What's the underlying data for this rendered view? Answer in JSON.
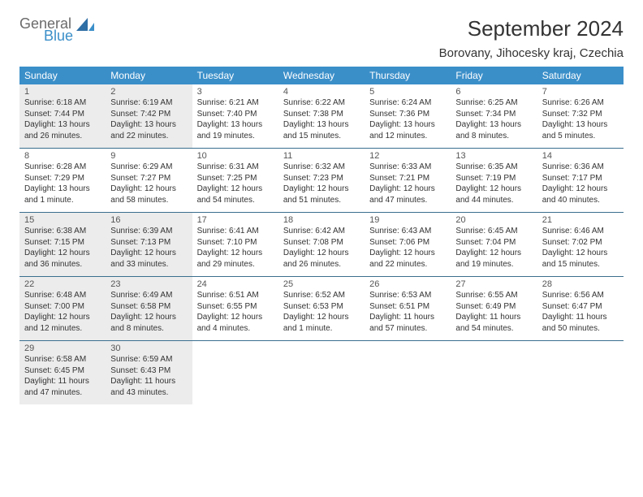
{
  "logo": {
    "line1": "General",
    "line2": "Blue"
  },
  "title": "September 2024",
  "location": "Borovany, Jihocesky kraj, Czechia",
  "colors": {
    "header_bg": "#3b8fc9",
    "header_text": "#ffffff",
    "shaded_bg": "#ececec",
    "border": "#3b6f8f",
    "text": "#333333",
    "logo_gray": "#6b6b6b",
    "logo_blue": "#3b8fc9"
  },
  "weekdays": [
    "Sunday",
    "Monday",
    "Tuesday",
    "Wednesday",
    "Thursday",
    "Friday",
    "Saturday"
  ],
  "weeks": [
    [
      {
        "day": "1",
        "shaded": true,
        "sunrise": "Sunrise: 6:18 AM",
        "sunset": "Sunset: 7:44 PM",
        "daylight1": "Daylight: 13 hours",
        "daylight2": "and 26 minutes."
      },
      {
        "day": "2",
        "shaded": true,
        "sunrise": "Sunrise: 6:19 AM",
        "sunset": "Sunset: 7:42 PM",
        "daylight1": "Daylight: 13 hours",
        "daylight2": "and 22 minutes."
      },
      {
        "day": "3",
        "shaded": false,
        "sunrise": "Sunrise: 6:21 AM",
        "sunset": "Sunset: 7:40 PM",
        "daylight1": "Daylight: 13 hours",
        "daylight2": "and 19 minutes."
      },
      {
        "day": "4",
        "shaded": false,
        "sunrise": "Sunrise: 6:22 AM",
        "sunset": "Sunset: 7:38 PM",
        "daylight1": "Daylight: 13 hours",
        "daylight2": "and 15 minutes."
      },
      {
        "day": "5",
        "shaded": false,
        "sunrise": "Sunrise: 6:24 AM",
        "sunset": "Sunset: 7:36 PM",
        "daylight1": "Daylight: 13 hours",
        "daylight2": "and 12 minutes."
      },
      {
        "day": "6",
        "shaded": false,
        "sunrise": "Sunrise: 6:25 AM",
        "sunset": "Sunset: 7:34 PM",
        "daylight1": "Daylight: 13 hours",
        "daylight2": "and 8 minutes."
      },
      {
        "day": "7",
        "shaded": false,
        "sunrise": "Sunrise: 6:26 AM",
        "sunset": "Sunset: 7:32 PM",
        "daylight1": "Daylight: 13 hours",
        "daylight2": "and 5 minutes."
      }
    ],
    [
      {
        "day": "8",
        "shaded": false,
        "sunrise": "Sunrise: 6:28 AM",
        "sunset": "Sunset: 7:29 PM",
        "daylight1": "Daylight: 13 hours",
        "daylight2": "and 1 minute."
      },
      {
        "day": "9",
        "shaded": false,
        "sunrise": "Sunrise: 6:29 AM",
        "sunset": "Sunset: 7:27 PM",
        "daylight1": "Daylight: 12 hours",
        "daylight2": "and 58 minutes."
      },
      {
        "day": "10",
        "shaded": false,
        "sunrise": "Sunrise: 6:31 AM",
        "sunset": "Sunset: 7:25 PM",
        "daylight1": "Daylight: 12 hours",
        "daylight2": "and 54 minutes."
      },
      {
        "day": "11",
        "shaded": false,
        "sunrise": "Sunrise: 6:32 AM",
        "sunset": "Sunset: 7:23 PM",
        "daylight1": "Daylight: 12 hours",
        "daylight2": "and 51 minutes."
      },
      {
        "day": "12",
        "shaded": false,
        "sunrise": "Sunrise: 6:33 AM",
        "sunset": "Sunset: 7:21 PM",
        "daylight1": "Daylight: 12 hours",
        "daylight2": "and 47 minutes."
      },
      {
        "day": "13",
        "shaded": false,
        "sunrise": "Sunrise: 6:35 AM",
        "sunset": "Sunset: 7:19 PM",
        "daylight1": "Daylight: 12 hours",
        "daylight2": "and 44 minutes."
      },
      {
        "day": "14",
        "shaded": false,
        "sunrise": "Sunrise: 6:36 AM",
        "sunset": "Sunset: 7:17 PM",
        "daylight1": "Daylight: 12 hours",
        "daylight2": "and 40 minutes."
      }
    ],
    [
      {
        "day": "15",
        "shaded": true,
        "sunrise": "Sunrise: 6:38 AM",
        "sunset": "Sunset: 7:15 PM",
        "daylight1": "Daylight: 12 hours",
        "daylight2": "and 36 minutes."
      },
      {
        "day": "16",
        "shaded": true,
        "sunrise": "Sunrise: 6:39 AM",
        "sunset": "Sunset: 7:13 PM",
        "daylight1": "Daylight: 12 hours",
        "daylight2": "and 33 minutes."
      },
      {
        "day": "17",
        "shaded": false,
        "sunrise": "Sunrise: 6:41 AM",
        "sunset": "Sunset: 7:10 PM",
        "daylight1": "Daylight: 12 hours",
        "daylight2": "and 29 minutes."
      },
      {
        "day": "18",
        "shaded": false,
        "sunrise": "Sunrise: 6:42 AM",
        "sunset": "Sunset: 7:08 PM",
        "daylight1": "Daylight: 12 hours",
        "daylight2": "and 26 minutes."
      },
      {
        "day": "19",
        "shaded": false,
        "sunrise": "Sunrise: 6:43 AM",
        "sunset": "Sunset: 7:06 PM",
        "daylight1": "Daylight: 12 hours",
        "daylight2": "and 22 minutes."
      },
      {
        "day": "20",
        "shaded": false,
        "sunrise": "Sunrise: 6:45 AM",
        "sunset": "Sunset: 7:04 PM",
        "daylight1": "Daylight: 12 hours",
        "daylight2": "and 19 minutes."
      },
      {
        "day": "21",
        "shaded": false,
        "sunrise": "Sunrise: 6:46 AM",
        "sunset": "Sunset: 7:02 PM",
        "daylight1": "Daylight: 12 hours",
        "daylight2": "and 15 minutes."
      }
    ],
    [
      {
        "day": "22",
        "shaded": true,
        "sunrise": "Sunrise: 6:48 AM",
        "sunset": "Sunset: 7:00 PM",
        "daylight1": "Daylight: 12 hours",
        "daylight2": "and 12 minutes."
      },
      {
        "day": "23",
        "shaded": true,
        "sunrise": "Sunrise: 6:49 AM",
        "sunset": "Sunset: 6:58 PM",
        "daylight1": "Daylight: 12 hours",
        "daylight2": "and 8 minutes."
      },
      {
        "day": "24",
        "shaded": false,
        "sunrise": "Sunrise: 6:51 AM",
        "sunset": "Sunset: 6:55 PM",
        "daylight1": "Daylight: 12 hours",
        "daylight2": "and 4 minutes."
      },
      {
        "day": "25",
        "shaded": false,
        "sunrise": "Sunrise: 6:52 AM",
        "sunset": "Sunset: 6:53 PM",
        "daylight1": "Daylight: 12 hours",
        "daylight2": "and 1 minute."
      },
      {
        "day": "26",
        "shaded": false,
        "sunrise": "Sunrise: 6:53 AM",
        "sunset": "Sunset: 6:51 PM",
        "daylight1": "Daylight: 11 hours",
        "daylight2": "and 57 minutes."
      },
      {
        "day": "27",
        "shaded": false,
        "sunrise": "Sunrise: 6:55 AM",
        "sunset": "Sunset: 6:49 PM",
        "daylight1": "Daylight: 11 hours",
        "daylight2": "and 54 minutes."
      },
      {
        "day": "28",
        "shaded": false,
        "sunrise": "Sunrise: 6:56 AM",
        "sunset": "Sunset: 6:47 PM",
        "daylight1": "Daylight: 11 hours",
        "daylight2": "and 50 minutes."
      }
    ],
    [
      {
        "day": "29",
        "shaded": true,
        "sunrise": "Sunrise: 6:58 AM",
        "sunset": "Sunset: 6:45 PM",
        "daylight1": "Daylight: 11 hours",
        "daylight2": "and 47 minutes."
      },
      {
        "day": "30",
        "shaded": true,
        "sunrise": "Sunrise: 6:59 AM",
        "sunset": "Sunset: 6:43 PM",
        "daylight1": "Daylight: 11 hours",
        "daylight2": "and 43 minutes."
      },
      {
        "day": "",
        "shaded": false,
        "empty": true
      },
      {
        "day": "",
        "shaded": false,
        "empty": true
      },
      {
        "day": "",
        "shaded": false,
        "empty": true
      },
      {
        "day": "",
        "shaded": false,
        "empty": true
      },
      {
        "day": "",
        "shaded": false,
        "empty": true
      }
    ]
  ]
}
